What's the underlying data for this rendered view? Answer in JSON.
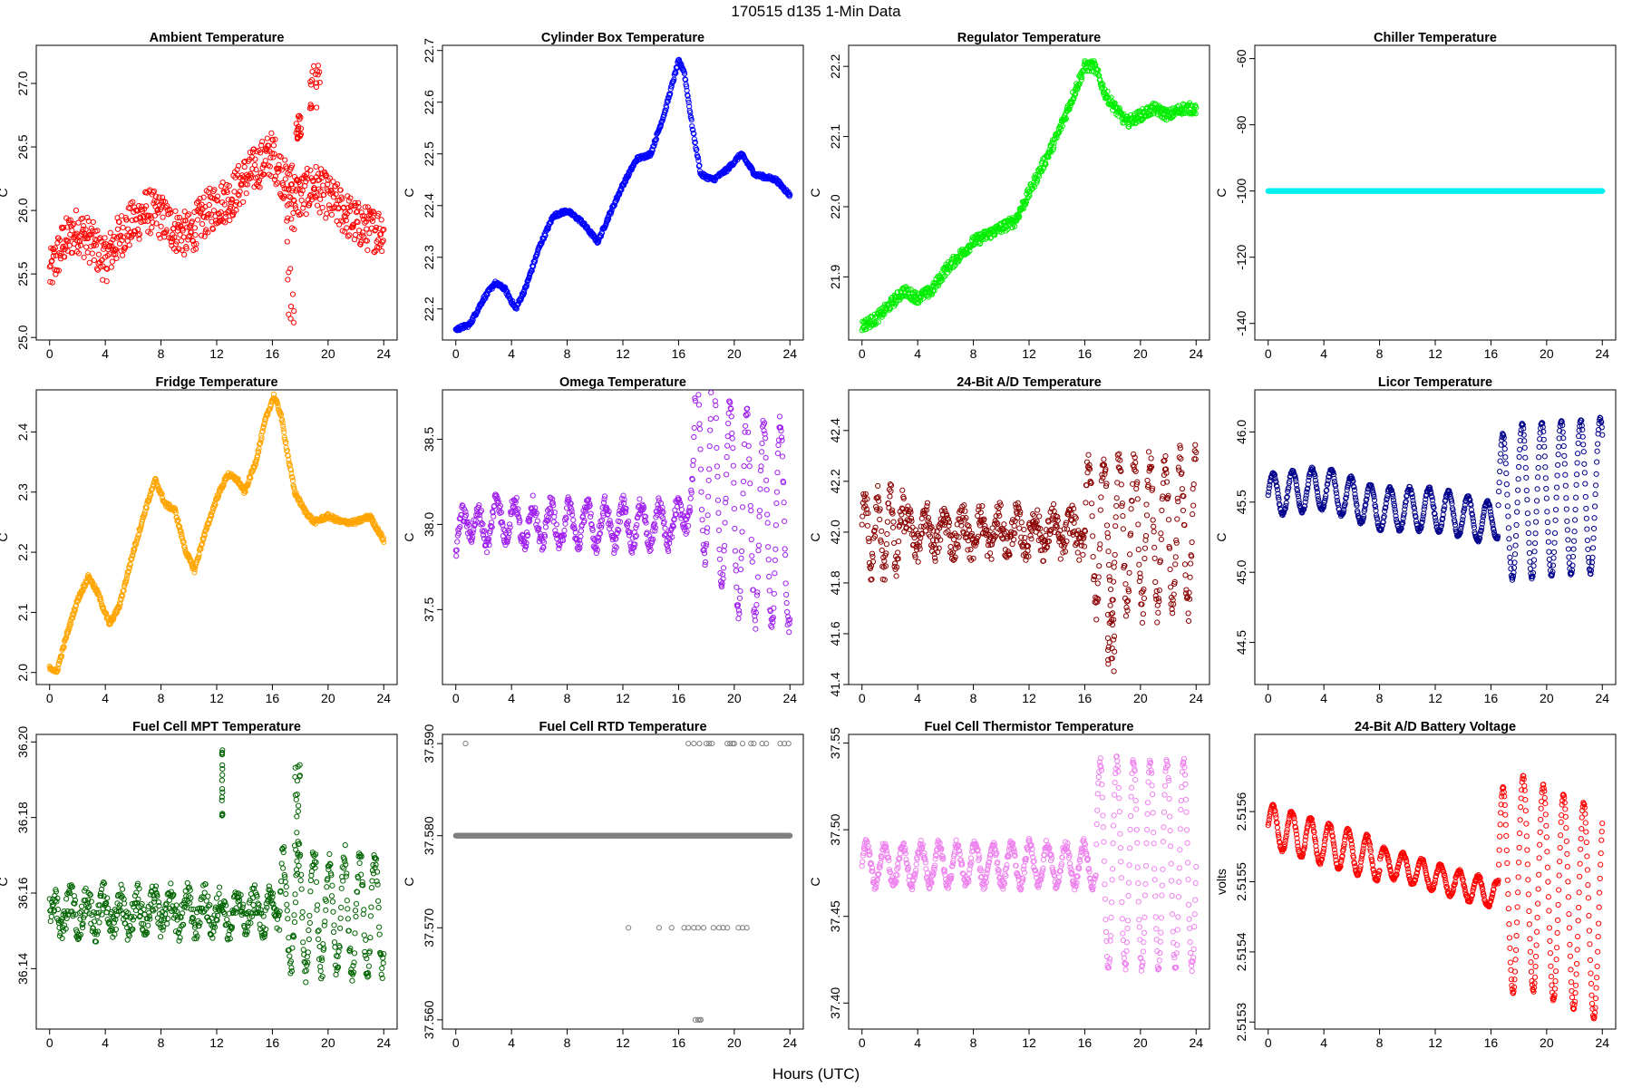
{
  "figure": {
    "title": "170515   d135   1-Min Data",
    "xlabel": "Hours (UTC)"
  },
  "chart_data": [
    {
      "type": "scatter",
      "title": "Ambient Temperature",
      "xlabel": "",
      "ylabel": "C",
      "color": "#ff0000",
      "xlim": [
        0,
        24
      ],
      "ylim": [
        24.98,
        27.3
      ],
      "xticks": [
        "0",
        "4",
        "8",
        "12",
        "16",
        "20",
        "24"
      ],
      "yticks": [
        "25.0",
        "25.5",
        "26.0",
        "26.5",
        "27.0"
      ],
      "anchors": [
        [
          0,
          25.5
        ],
        [
          1,
          25.75
        ],
        [
          2,
          25.85
        ],
        [
          3,
          25.75
        ],
        [
          4,
          25.6
        ],
        [
          5,
          25.8
        ],
        [
          6,
          25.9
        ],
        [
          7,
          26.0
        ],
        [
          8,
          25.95
        ],
        [
          9,
          25.85
        ],
        [
          10,
          25.8
        ],
        [
          11,
          25.95
        ],
        [
          12,
          26.05
        ],
        [
          13,
          26.1
        ],
        [
          14,
          26.25
        ],
        [
          15,
          26.35
        ],
        [
          16,
          26.45
        ],
        [
          17,
          26.2
        ],
        [
          18,
          26.1
        ],
        [
          19,
          26.2
        ],
        [
          20,
          26.1
        ],
        [
          21,
          26.0
        ],
        [
          22,
          25.9
        ],
        [
          23,
          25.85
        ],
        [
          24,
          25.85
        ]
      ],
      "spread": 0.18,
      "spikes": [
        [
          17.3,
          25.1,
          26.5,
          0.6
        ],
        [
          19.1,
          26.8,
          27.2,
          0.8
        ],
        [
          17.9,
          26.55,
          26.75,
          0.4
        ]
      ]
    },
    {
      "type": "scatter",
      "title": "Cylinder Box Temperature",
      "xlabel": "",
      "ylabel": "C",
      "color": "#0000ff",
      "xlim": [
        0,
        24
      ],
      "ylim": [
        22.14,
        22.71
      ],
      "xticks": [
        "0",
        "4",
        "8",
        "12",
        "16",
        "20",
        "24"
      ],
      "yticks": [
        "22.2",
        "22.3",
        "22.4",
        "22.5",
        "22.6",
        "22.7"
      ],
      "anchors": [
        [
          0,
          22.16
        ],
        [
          1,
          22.17
        ],
        [
          2,
          22.22
        ],
        [
          2.8,
          22.25
        ],
        [
          3.5,
          22.24
        ],
        [
          4.3,
          22.2
        ],
        [
          5,
          22.24
        ],
        [
          6,
          22.32
        ],
        [
          7,
          22.38
        ],
        [
          8,
          22.39
        ],
        [
          9,
          22.37
        ],
        [
          10.2,
          22.33
        ],
        [
          11,
          22.38
        ],
        [
          12,
          22.44
        ],
        [
          13,
          22.49
        ],
        [
          14,
          22.5
        ],
        [
          15,
          22.58
        ],
        [
          16,
          22.68
        ],
        [
          16.4,
          22.66
        ],
        [
          17,
          22.55
        ],
        [
          17.6,
          22.46
        ],
        [
          18.5,
          22.45
        ],
        [
          19.5,
          22.47
        ],
        [
          20.5,
          22.5
        ],
        [
          21.5,
          22.46
        ],
        [
          23,
          22.45
        ],
        [
          24,
          22.42
        ]
      ],
      "spread": 0.004,
      "spikes": []
    },
    {
      "type": "scatter",
      "title": "Regulator Temperature",
      "xlabel": "",
      "ylabel": "C",
      "color": "#00ee00",
      "xlim": [
        0,
        24
      ],
      "ylim": [
        21.81,
        22.23
      ],
      "xticks": [
        "0",
        "4",
        "8",
        "12",
        "16",
        "20",
        "24"
      ],
      "yticks": [
        "21.9",
        "22.0",
        "22.1",
        "22.2"
      ],
      "anchors": [
        [
          0,
          21.83
        ],
        [
          1,
          21.84
        ],
        [
          2,
          21.86
        ],
        [
          3,
          21.88
        ],
        [
          4,
          21.87
        ],
        [
          5,
          21.88
        ],
        [
          6,
          21.91
        ],
        [
          7,
          21.93
        ],
        [
          8,
          21.95
        ],
        [
          9,
          21.96
        ],
        [
          10,
          21.97
        ],
        [
          11,
          21.98
        ],
        [
          12,
          22.02
        ],
        [
          13,
          22.06
        ],
        [
          14,
          22.1
        ],
        [
          15,
          22.15
        ],
        [
          16,
          22.2
        ],
        [
          16.7,
          22.2
        ],
        [
          17.5,
          22.16
        ],
        [
          18.2,
          22.14
        ],
        [
          19,
          22.12
        ],
        [
          20,
          22.13
        ],
        [
          21,
          22.14
        ],
        [
          22,
          22.13
        ],
        [
          23,
          22.14
        ],
        [
          24,
          22.14
        ]
      ],
      "spread": 0.008,
      "spikes": []
    },
    {
      "type": "scatter",
      "title": "Chiller Temperature",
      "xlabel": "",
      "ylabel": "C",
      "color": "#00eeee",
      "xlim": [
        0,
        24
      ],
      "ylim": [
        -145,
        -56
      ],
      "xticks": [
        "0",
        "4",
        "8",
        "12",
        "16",
        "20",
        "24"
      ],
      "yticks": [
        "-140",
        "-120",
        "-100",
        "-80",
        "-60"
      ],
      "anchors": [
        [
          0,
          -100
        ],
        [
          24,
          -100
        ]
      ],
      "spread": 0,
      "spikes": []
    },
    {
      "type": "scatter",
      "title": "Fridge Temperature",
      "xlabel": "",
      "ylabel": "C",
      "color": "#ffa500",
      "xlim": [
        0,
        24
      ],
      "ylim": [
        1.98,
        2.47
      ],
      "xticks": [
        "0",
        "4",
        "8",
        "12",
        "16",
        "20",
        "24"
      ],
      "yticks": [
        "2.0",
        "2.1",
        "2.2",
        "2.3",
        "2.4"
      ],
      "anchors": [
        [
          0,
          2.01
        ],
        [
          0.5,
          2.0
        ],
        [
          1.2,
          2.06
        ],
        [
          2,
          2.12
        ],
        [
          2.8,
          2.16
        ],
        [
          3.5,
          2.13
        ],
        [
          4.3,
          2.08
        ],
        [
          5,
          2.11
        ],
        [
          6,
          2.2
        ],
        [
          7,
          2.28
        ],
        [
          7.6,
          2.32
        ],
        [
          8.3,
          2.28
        ],
        [
          9,
          2.27
        ],
        [
          9.8,
          2.2
        ],
        [
          10.4,
          2.17
        ],
        [
          11,
          2.22
        ],
        [
          12,
          2.29
        ],
        [
          12.8,
          2.33
        ],
        [
          13.5,
          2.32
        ],
        [
          14,
          2.3
        ],
        [
          14.8,
          2.35
        ],
        [
          15.5,
          2.42
        ],
        [
          16.1,
          2.46
        ],
        [
          16.6,
          2.43
        ],
        [
          17.2,
          2.35
        ],
        [
          17.6,
          2.3
        ],
        [
          18.3,
          2.27
        ],
        [
          19,
          2.25
        ],
        [
          20,
          2.26
        ],
        [
          21,
          2.25
        ],
        [
          22,
          2.25
        ],
        [
          23,
          2.26
        ],
        [
          24,
          2.22
        ]
      ],
      "spread": 0.004,
      "spikes": []
    },
    {
      "type": "scatter",
      "title": "Omega Temperature",
      "xlabel": "",
      "ylabel": "C",
      "color": "#a020f0",
      "xlim": [
        0,
        24
      ],
      "ylim": [
        37.06,
        38.79
      ],
      "xticks": [
        "0",
        "4",
        "8",
        "12",
        "16",
        "20",
        "24"
      ],
      "yticks": [
        "37.5",
        "38.0",
        "38.5"
      ],
      "anchors": [
        [
          0,
          37.8
        ],
        [
          0.8,
          38.1
        ],
        [
          1.5,
          37.95
        ],
        [
          3,
          38.05
        ],
        [
          5,
          38.0
        ],
        [
          8,
          38.0
        ],
        [
          12,
          38.0
        ],
        [
          16,
          38.0
        ],
        [
          17,
          38.2
        ],
        [
          18,
          38.4
        ],
        [
          20,
          38.1
        ],
        [
          22,
          38.0
        ],
        [
          24,
          38.0
        ]
      ],
      "spread": 0.05,
      "osc": [
        [
          0,
          17,
          0.12,
          1.3
        ],
        [
          17,
          24,
          0.6,
          1.2
        ]
      ],
      "spikes": []
    },
    {
      "type": "scatter",
      "title": "24-Bit A/D Temperature",
      "xlabel": "",
      "ylabel": "C",
      "color": "#8b0000",
      "xlim": [
        0,
        24
      ],
      "ylim": [
        41.4,
        42.56
      ],
      "xticks": [
        "0",
        "4",
        "8",
        "12",
        "16",
        "20",
        "24"
      ],
      "yticks": [
        "41.4",
        "41.6",
        "41.8",
        "42.0",
        "42.2",
        "42.4"
      ],
      "anchors": [
        [
          0,
          42.0
        ],
        [
          24,
          42.0
        ]
      ],
      "spread": 0.06,
      "osc": [
        [
          0,
          3,
          0.15,
          0.9
        ],
        [
          3,
          16,
          0.06,
          1.3
        ],
        [
          16,
          24,
          0.3,
          1.1
        ]
      ],
      "spikes": [
        [
          17.9,
          41.45,
          41.7,
          0.5
        ]
      ]
    },
    {
      "type": "scatter",
      "title": "Licor Temperature",
      "xlabel": "",
      "ylabel": "C",
      "color": "#00008b",
      "xlim": [
        0,
        24
      ],
      "ylim": [
        44.2,
        46.3
      ],
      "xticks": [
        "0",
        "4",
        "8",
        "12",
        "16",
        "20",
        "24"
      ],
      "yticks": [
        "44.5",
        "45.0",
        "45.5",
        "46.0"
      ],
      "anchors": [
        [
          0,
          45.55
        ],
        [
          4,
          45.6
        ],
        [
          8,
          45.45
        ],
        [
          12,
          45.45
        ],
        [
          16,
          45.35
        ],
        [
          17.5,
          45.5
        ],
        [
          24,
          45.55
        ]
      ],
      "spread": 0.01,
      "osc": [
        [
          0,
          16.5,
          0.15,
          1.4
        ],
        [
          16.5,
          24,
          0.55,
          1.4
        ]
      ],
      "spikes": []
    },
    {
      "type": "scatter",
      "title": "Fuel Cell MPT Temperature",
      "xlabel": "",
      "ylabel": "C",
      "color": "#006400",
      "xlim": [
        0,
        24
      ],
      "ylim": [
        36.124,
        36.202
      ],
      "xticks": [
        "0",
        "4",
        "8",
        "12",
        "16",
        "20",
        "24"
      ],
      "yticks": [
        "36.14",
        "36.16",
        "36.18",
        "36.20"
      ],
      "anchors": [
        [
          0,
          36.155
        ],
        [
          24,
          36.155
        ]
      ],
      "spread": 0.004,
      "osc": [
        [
          0,
          16.5,
          0.004,
          1.2
        ],
        [
          16.5,
          24,
          0.015,
          1.1
        ]
      ],
      "spikes": [
        [
          12.4,
          36.18,
          36.199,
          0.05
        ],
        [
          17.8,
          36.17,
          36.195,
          0.4
        ]
      ]
    },
    {
      "type": "scatter",
      "title": "Fuel Cell RTD Temperature",
      "xlabel": "",
      "ylabel": "C",
      "color": "#808080",
      "xlim": [
        0,
        24
      ],
      "ylim": [
        37.559,
        37.591
      ],
      "xticks": [
        "0",
        "4",
        "8",
        "12",
        "16",
        "20",
        "24"
      ],
      "yticks": [
        "37.560",
        "37.570",
        "37.580",
        "37.590"
      ],
      "anchors": [
        [
          0,
          37.58
        ],
        [
          24,
          37.58
        ]
      ],
      "spread": 0,
      "spikes": []
    },
    {
      "type": "scatter",
      "title": "Fuel Cell Thermistor Temperature",
      "xlabel": "",
      "ylabel": "C",
      "color": "#ee82ee",
      "xlim": [
        0,
        24
      ],
      "ylim": [
        37.385,
        37.555
      ],
      "xticks": [
        "0",
        "4",
        "8",
        "12",
        "16",
        "20",
        "24"
      ],
      "yticks": [
        "37.40",
        "37.45",
        "37.50",
        "37.55"
      ],
      "anchors": [
        [
          0,
          37.48
        ],
        [
          24,
          37.48
        ]
      ],
      "spread": 0.003,
      "osc": [
        [
          0,
          16.8,
          0.012,
          1.3
        ],
        [
          16.8,
          24,
          0.06,
          1.2
        ]
      ],
      "spikes": []
    },
    {
      "type": "scatter",
      "title": "24-Bit A/D Battery Voltage",
      "xlabel": "",
      "ylabel": "volts",
      "color": "#ff0000",
      "xlim": [
        0,
        24
      ],
      "ylim": [
        2.51529,
        2.51571
      ],
      "xticks": [
        "0",
        "4",
        "8",
        "12",
        "16",
        "20",
        "24"
      ],
      "yticks": [
        "2.5153",
        "2.5154",
        "2.5155",
        "2.5156"
      ],
      "anchors": [
        [
          0,
          2.51558
        ],
        [
          8,
          2.51553
        ],
        [
          16.5,
          2.51548
        ],
        [
          18.3,
          2.5155
        ],
        [
          24,
          2.51545
        ]
      ],
      "spread": 2e-06,
      "osc": [
        [
          0,
          8,
          3e-05,
          1.35
        ],
        [
          8,
          16.5,
          2e-05,
          1.35
        ],
        [
          16.5,
          24,
          0.00015,
          1.45
        ]
      ],
      "spikes": []
    }
  ]
}
